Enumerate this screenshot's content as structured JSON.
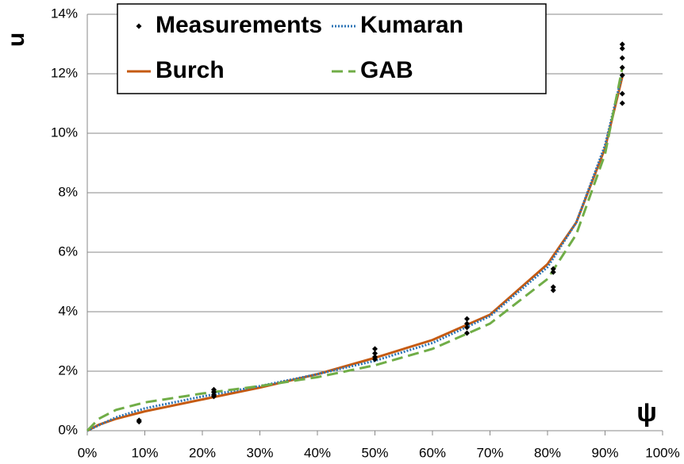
{
  "chart_data": {
    "type": "line",
    "x_label": "ψ",
    "y_label": "u",
    "xlim": [
      0,
      100
    ],
    "ylim": [
      0,
      14
    ],
    "xticks": [
      {
        "value": 0,
        "label": "0%"
      },
      {
        "value": 10,
        "label": "10%"
      },
      {
        "value": 20,
        "label": "20%"
      },
      {
        "value": 30,
        "label": "30%"
      },
      {
        "value": 40,
        "label": "40%"
      },
      {
        "value": 50,
        "label": "50%"
      },
      {
        "value": 60,
        "label": "60%"
      },
      {
        "value": 70,
        "label": "70%"
      },
      {
        "value": 80,
        "label": "80%"
      },
      {
        "value": 90,
        "label": "90%"
      },
      {
        "value": 100,
        "label": "100%"
      }
    ],
    "yticks": [
      {
        "value": 0,
        "label": "0%"
      },
      {
        "value": 2,
        "label": "2%"
      },
      {
        "value": 4,
        "label": "4%"
      },
      {
        "value": 6,
        "label": "6%"
      },
      {
        "value": 8,
        "label": "8%"
      },
      {
        "value": 10,
        "label": "10%"
      },
      {
        "value": 12,
        "label": "12%"
      },
      {
        "value": 14,
        "label": "14%"
      }
    ],
    "grid": true,
    "legend": "top",
    "series": [
      {
        "name": "Measurements",
        "type": "scatter",
        "marker": "diamond",
        "color": "#000000",
        "x": [
          9,
          9,
          22,
          22,
          22,
          22,
          50,
          50,
          50,
          50,
          66,
          66,
          66,
          66,
          81,
          81,
          81,
          81,
          93,
          93,
          93,
          93,
          93,
          93,
          93
        ],
        "values": [
          0.3,
          0.35,
          1.15,
          1.2,
          1.3,
          1.38,
          2.4,
          2.48,
          2.6,
          2.75,
          3.28,
          3.47,
          3.6,
          3.76,
          4.72,
          4.83,
          5.33,
          5.44,
          11.01,
          11.33,
          11.95,
          12.21,
          12.53,
          12.85,
          12.99
        ]
      },
      {
        "name": "Kumaran",
        "type": "line",
        "style": "dotted",
        "color": "#2e75b6",
        "x": [
          0,
          5,
          10,
          20,
          30,
          40,
          50,
          60,
          70,
          80,
          85,
          90,
          93
        ],
        "values": [
          0,
          0.45,
          0.75,
          1.15,
          1.5,
          1.9,
          2.35,
          2.95,
          3.85,
          5.5,
          7.0,
          9.6,
          12.0
        ]
      },
      {
        "name": "Burch",
        "type": "line",
        "style": "solid",
        "color": "#c55a11",
        "x": [
          0,
          2,
          5,
          10,
          20,
          30,
          40,
          50,
          60,
          70,
          80,
          85,
          90,
          93
        ],
        "values": [
          0,
          0.2,
          0.4,
          0.65,
          1.05,
          1.45,
          1.9,
          2.45,
          3.05,
          3.9,
          5.6,
          7.0,
          9.5,
          11.9
        ]
      },
      {
        "name": "GAB",
        "type": "line",
        "style": "dashed",
        "color": "#70ad47",
        "x": [
          0,
          2,
          5,
          10,
          20,
          30,
          40,
          50,
          60,
          70,
          80,
          85,
          90,
          93
        ],
        "values": [
          0,
          0.4,
          0.7,
          0.95,
          1.25,
          1.5,
          1.8,
          2.2,
          2.75,
          3.6,
          5.1,
          6.6,
          9.3,
          12.2
        ]
      }
    ]
  }
}
